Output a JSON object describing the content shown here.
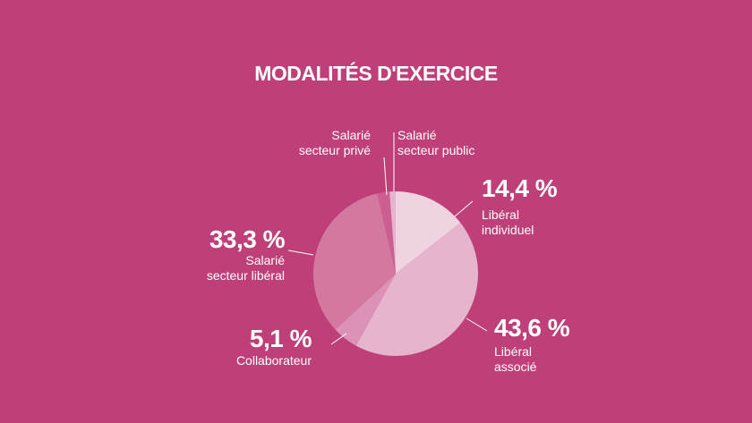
{
  "chart_data": {
    "type": "pie",
    "title": "MODALITÉS D'EXERCICE",
    "slices": [
      {
        "key": "liberal-individuel",
        "pct_label": "14,4 %",
        "value": 14.4,
        "label": [
          "Libéral",
          "individuel"
        ],
        "color": "#f0d3e1"
      },
      {
        "key": "liberal-associe",
        "pct_label": "43,6 %",
        "value": 43.6,
        "label": [
          "Libéral",
          "associé"
        ],
        "color": "#e6b4cd"
      },
      {
        "key": "collaborateur",
        "pct_label": "5,1 %",
        "value": 5.1,
        "label": [
          "Collaborateur"
        ],
        "color": "#dc92b7"
      },
      {
        "key": "salarie-secteur-liberal",
        "pct_label": "33,3 %",
        "value": 33.3,
        "label": [
          "Salarié",
          "secteur libéral"
        ],
        "color": "#d3789f"
      },
      {
        "key": "salarie-secteur-prive",
        "pct_label": "",
        "value": 2.4,
        "label": [
          "Salarié",
          "secteur privé"
        ],
        "color": "#cc5f92"
      },
      {
        "key": "salarie-secteur-public",
        "pct_label": "",
        "value": 1.2,
        "label": [
          "Salarié",
          "secteur public"
        ],
        "color": "#e8b3cd"
      }
    ]
  }
}
